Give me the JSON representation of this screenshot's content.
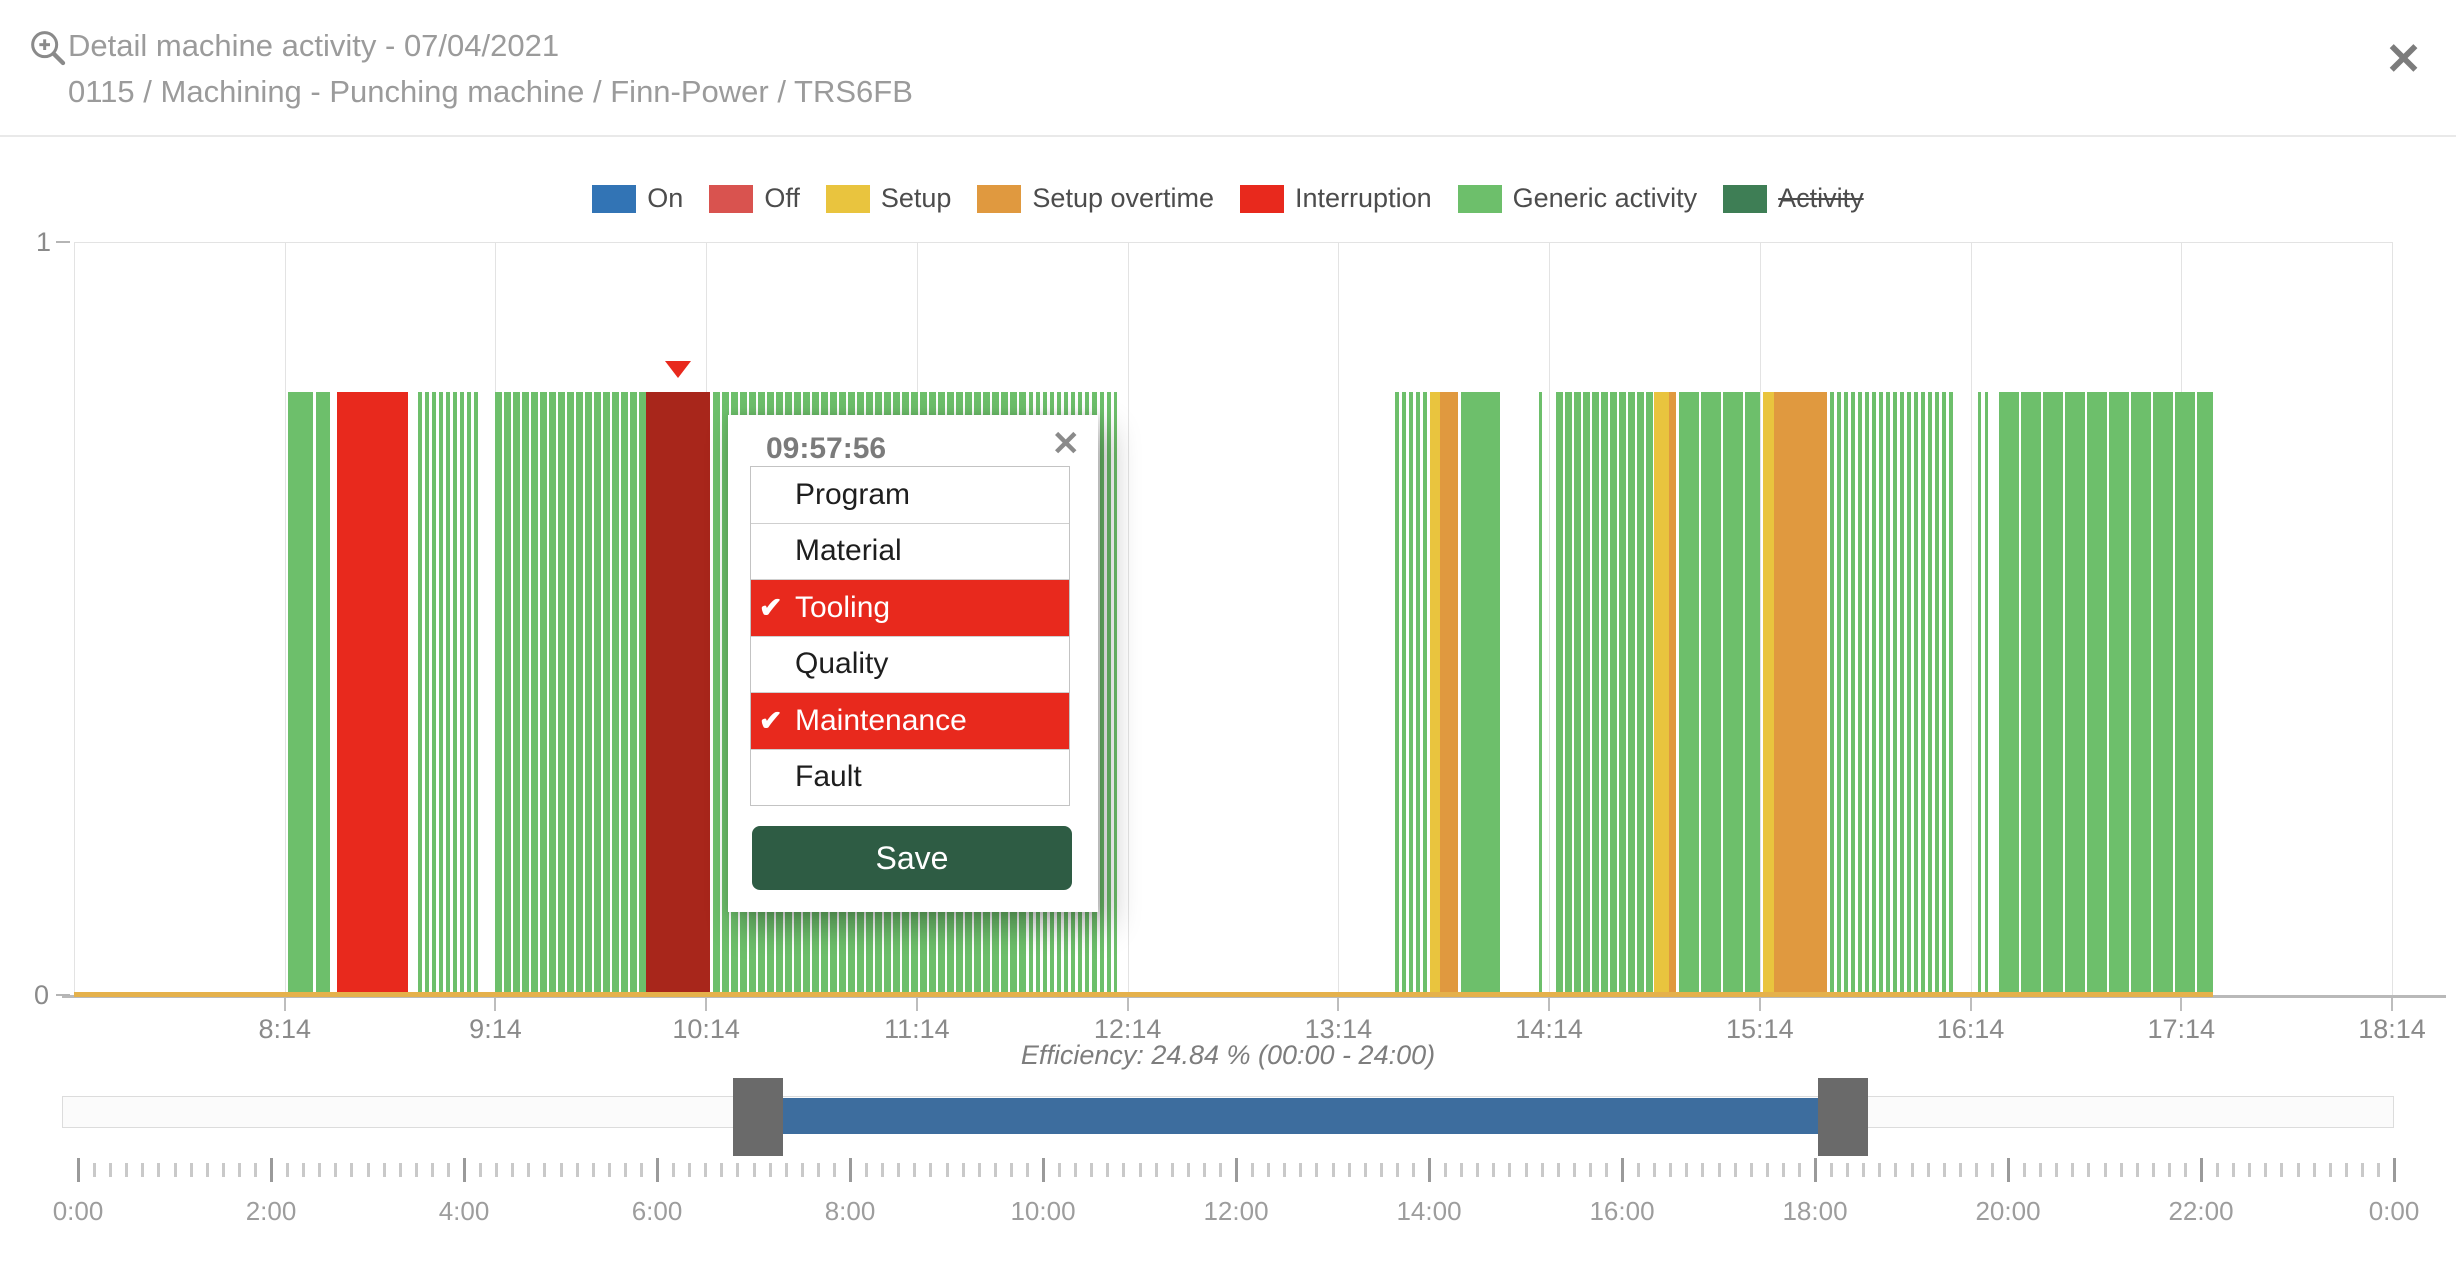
{
  "header": {
    "title": "Detail machine activity - 07/04/2021",
    "subtitle": "0115 / Machining - Punching machine / Finn-Power / TRS6FB",
    "close_glyph": "✕"
  },
  "colors": {
    "on": "#3274b5",
    "off": "#d9534f",
    "setup": "#e9c43e",
    "setup_overtime": "#e0993f",
    "interruption": "#e8291d",
    "generic": "#6dbf6b",
    "activity": "#3e7e55",
    "interruption_selected": "#a8261b",
    "baseline": "#e5b14b",
    "slider_range": "#3d6d9e",
    "slider_handle": "#6a6a6a",
    "popup_selected": "#e8291d",
    "save_button": "#2e5c44"
  },
  "legend": [
    {
      "label": "On",
      "color_key": "on",
      "strikethrough": false
    },
    {
      "label": "Off",
      "color_key": "off",
      "strikethrough": false
    },
    {
      "label": "Setup",
      "color_key": "setup",
      "strikethrough": false
    },
    {
      "label": "Setup overtime",
      "color_key": "setup_overtime",
      "strikethrough": false
    },
    {
      "label": "Interruption",
      "color_key": "interruption",
      "strikethrough": false
    },
    {
      "label": "Generic activity",
      "color_key": "generic",
      "strikethrough": false
    },
    {
      "label": "Activity",
      "color_key": "activity",
      "strikethrough": true
    }
  ],
  "chart_data": {
    "type": "bar",
    "title": "Machine activity timeline",
    "window_start": "07:14",
    "window_end": "18:14",
    "window_minutes": 660,
    "x_tick_labels": [
      "8:14",
      "9:14",
      "10:14",
      "11:14",
      "12:14",
      "13:14",
      "14:14",
      "15:14",
      "16:14",
      "17:14",
      "18:14"
    ],
    "y_axis": {
      "top_label": "1",
      "bottom_label": "0"
    },
    "bar_value": 0.8,
    "segments": [
      {
        "from": "08:15",
        "to": "08:22",
        "status": "generic",
        "pattern": "solid"
      },
      {
        "from": "08:23",
        "to": "08:27",
        "status": "generic",
        "pattern": "solid"
      },
      {
        "from": "08:29",
        "to": "08:49",
        "status": "interruption",
        "pattern": "solid"
      },
      {
        "from": "08:52",
        "to": "09:10",
        "status": "generic",
        "pattern": "striped"
      },
      {
        "from": "09:14",
        "to": "09:57",
        "status": "generic",
        "pattern": "dense"
      },
      {
        "from": "09:57",
        "to": "10:15",
        "status": "interruption_selected",
        "pattern": "solid"
      },
      {
        "from": "10:16",
        "to": "11:44",
        "status": "generic",
        "pattern": "dense"
      },
      {
        "from": "11:44",
        "to": "12:04",
        "status": "generic",
        "pattern": "striped"
      },
      {
        "from": "12:04",
        "to": "12:11",
        "status": "generic",
        "pattern": "striped"
      },
      {
        "from": "13:30",
        "to": "13:40",
        "status": "generic",
        "pattern": "striped"
      },
      {
        "from": "13:40",
        "to": "13:43",
        "status": "setup",
        "pattern": "solid"
      },
      {
        "from": "13:43",
        "to": "13:48",
        "status": "setup_overtime",
        "pattern": "solid"
      },
      {
        "from": "13:49",
        "to": "14:00",
        "status": "generic",
        "pattern": "solid"
      },
      {
        "from": "14:11",
        "to": "14:12",
        "status": "generic",
        "pattern": "solid"
      },
      {
        "from": "14:16",
        "to": "14:44",
        "status": "generic",
        "pattern": "dense"
      },
      {
        "from": "14:44",
        "to": "14:48",
        "status": "setup",
        "pattern": "solid"
      },
      {
        "from": "14:48",
        "to": "14:50",
        "status": "setup_overtime",
        "pattern": "solid"
      },
      {
        "from": "14:51",
        "to": "15:14",
        "status": "generic",
        "pattern": "blocks"
      },
      {
        "from": "15:15",
        "to": "15:18",
        "status": "setup",
        "pattern": "solid"
      },
      {
        "from": "15:18",
        "to": "15:33",
        "status": "setup_overtime",
        "pattern": "solid"
      },
      {
        "from": "15:34",
        "to": "16:10",
        "status": "generic",
        "pattern": "striped"
      },
      {
        "from": "16:16",
        "to": "16:17",
        "status": "generic",
        "pattern": "solid"
      },
      {
        "from": "16:18",
        "to": "16:19",
        "status": "generic",
        "pattern": "solid"
      },
      {
        "from": "16:22",
        "to": "17:23",
        "status": "generic",
        "pattern": "blocks"
      }
    ],
    "baseline": {
      "from": "07:14",
      "to": "17:23",
      "status": "setup"
    },
    "marker": {
      "time": "10:06",
      "shape": "triangle-down"
    },
    "efficiency_label": "Efficiency: 24.84 % (00:00 - 24:00)"
  },
  "popup": {
    "time": "09:57:56",
    "close_glyph": "✕",
    "check_glyph": "✔",
    "items": [
      {
        "label": "Program",
        "selected": false
      },
      {
        "label": "Material",
        "selected": false
      },
      {
        "label": "Tooling",
        "selected": true
      },
      {
        "label": "Quality",
        "selected": false
      },
      {
        "label": "Maintenance",
        "selected": true
      },
      {
        "label": "Fault",
        "selected": false
      }
    ],
    "save_label": "Save"
  },
  "slider": {
    "full_start": "0:00",
    "full_end": "24:00",
    "selected_start": "07:10",
    "selected_end": "18:20"
  },
  "ruler": {
    "labels": [
      "0:00",
      "2:00",
      "4:00",
      "6:00",
      "8:00",
      "10:00",
      "12:00",
      "14:00",
      "16:00",
      "18:00",
      "20:00",
      "22:00",
      "0:00"
    ],
    "major_step_minutes": 120,
    "minor_step_minutes": 10
  }
}
